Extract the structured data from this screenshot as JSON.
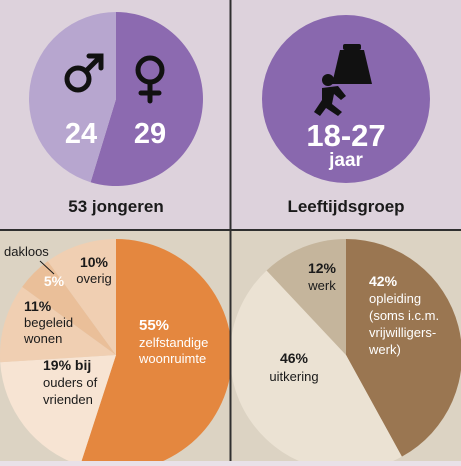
{
  "colors": {
    "panel_top": "#ddd2dc",
    "panel_bottom": "#dcd3c3",
    "divider": "#2f2f2f",
    "female_purple": "#8c6ab0",
    "male_lavender": "#b7a6cf",
    "age_purple": "#8968ae",
    "orange": "#e4873f",
    "housing_light_1": "#f7e4d3",
    "housing_light_2": "#f0cfb2",
    "housing_light_3": "#eabf99",
    "brown": "#9a7651",
    "tan": "#c5b59c",
    "cream": "#ebe2d3"
  },
  "gender": {
    "male_count": "24",
    "female_count": "29",
    "male_icon": "male-symbol",
    "female_icon": "female-symbol",
    "caption": "53 jongeren"
  },
  "age": {
    "range": "18-27",
    "unit": "jaar",
    "icon": "person-carrying-bag",
    "caption": "Leeftijdsgroep"
  },
  "housing": {
    "dakloos_label": "dakloos",
    "dakloos_pct": "5%",
    "overig_pct": "10%",
    "overig_label": "overig",
    "begeleid_pct": "11%",
    "begeleid_line1": "begeleid",
    "begeleid_line2": "wonen",
    "ouders_line1": "19% bij",
    "ouders_line2": "ouders of",
    "ouders_line3": "vrienden",
    "zelf_pct": "55%",
    "zelf_line1": "zelfstandige",
    "zelf_line2": "woonruimte"
  },
  "activity": {
    "werk_pct": "12%",
    "werk_label": "werk",
    "opleiding_pct": "42%",
    "opleiding_line1": "opleiding",
    "opleiding_line2": "(soms i.c.m.",
    "opleiding_line3": "vrijwilligers-",
    "opleiding_line4": "werk)",
    "uitkering_pct": "46%",
    "uitkering_label": "uitkering"
  },
  "chart_data": [
    {
      "type": "pie",
      "title": "53 jongeren",
      "categories": [
        "male",
        "female"
      ],
      "values": [
        24,
        29
      ]
    },
    {
      "type": "pie",
      "categories": [
        "zelfstandige woonruimte",
        "bij ouders of vrienden",
        "begeleid wonen",
        "dakloos",
        "overig"
      ],
      "values": [
        55,
        19,
        11,
        5,
        10
      ]
    },
    {
      "type": "pie",
      "categories": [
        "opleiding (soms i.c.m. vrijwilligerswerk)",
        "uitkering",
        "werk"
      ],
      "values": [
        42,
        46,
        12
      ]
    }
  ]
}
